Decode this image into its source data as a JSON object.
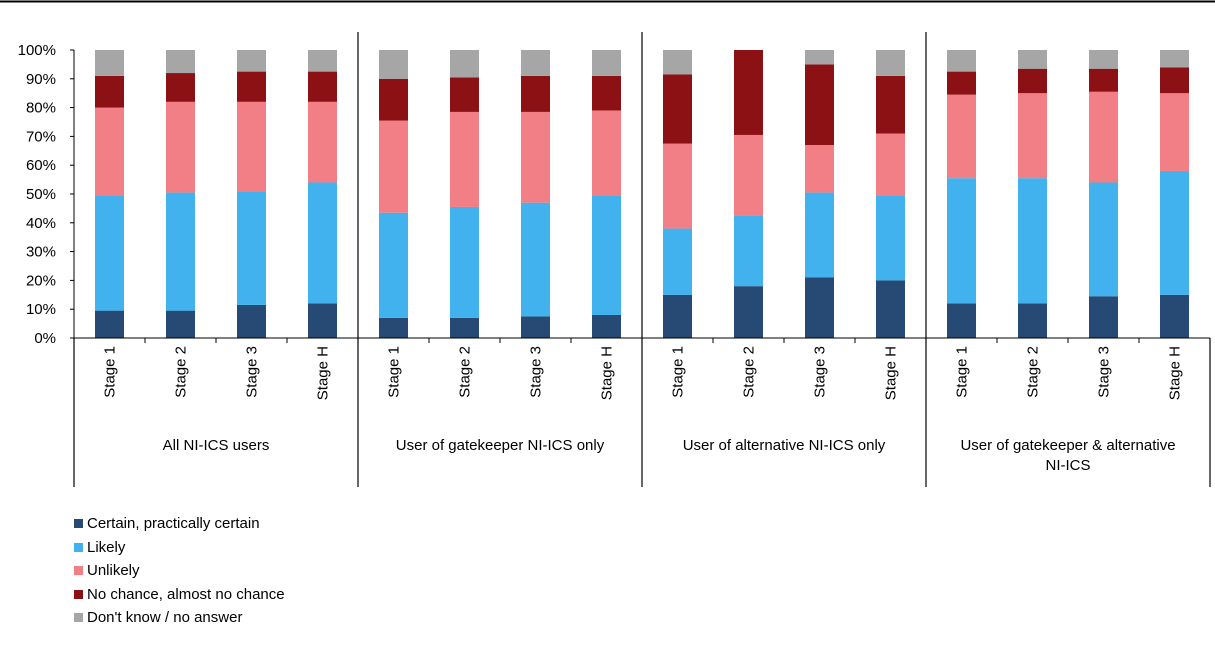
{
  "chart_data": {
    "type": "bar",
    "stacked": true,
    "yticks": [
      "0%",
      "10%",
      "20%",
      "30%",
      "40%",
      "50%",
      "60%",
      "70%",
      "80%",
      "90%",
      "100%"
    ],
    "ylim": [
      0,
      100
    ],
    "categories": [
      "Stage 1",
      "Stage 2",
      "Stage 3",
      "Stage H",
      "Stage 1",
      "Stage 2",
      "Stage 3",
      "Stage H",
      "Stage 1",
      "Stage 2",
      "Stage 3",
      "Stage H",
      "Stage 1",
      "Stage 2",
      "Stage 3",
      "Stage H"
    ],
    "groups": [
      {
        "label": "All NI-ICS users",
        "label_lines": [
          "All NI-ICS users"
        ]
      },
      {
        "label": "User of gatekeeper NI-ICS only",
        "label_lines": [
          "User of gatekeeper NI-ICS only"
        ]
      },
      {
        "label": "User of alternative NI-ICS only",
        "label_lines": [
          "User of alternative NI-ICS only"
        ]
      },
      {
        "label": "User of gatekeeper & alternative NI-ICS",
        "label_lines": [
          "User of gatekeeper & alternative",
          "NI-ICS"
        ]
      }
    ],
    "series": [
      {
        "name": "Certain, practically certain",
        "color": "#264a73",
        "values": [
          9.5,
          9.5,
          11.5,
          12,
          7,
          7,
          7.5,
          8,
          15,
          18,
          21,
          20,
          12,
          12,
          14.5,
          15
        ]
      },
      {
        "name": "Likely",
        "color": "#41b2ee",
        "values": [
          40,
          41,
          39.5,
          42,
          36.5,
          38.5,
          39.5,
          41.5,
          23,
          24.5,
          29.5,
          29.5,
          43.5,
          43.5,
          39.5,
          43
        ]
      },
      {
        "name": "Unlikely",
        "color": "#f27f85",
        "values": [
          30.5,
          31.5,
          31,
          28,
          32,
          33,
          31.5,
          29.5,
          29.5,
          28,
          16.5,
          21.5,
          29,
          29.5,
          31.5,
          27
        ]
      },
      {
        "name": "No chance, almost no chance",
        "color": "#8c1115",
        "values": [
          11,
          10,
          10.5,
          10.5,
          14.5,
          12,
          12.5,
          12,
          24,
          29.5,
          28,
          20,
          8,
          8.5,
          8,
          9
        ]
      },
      {
        "name": "Don't know / no answer",
        "color": "#a6a6a6",
        "values": [
          9,
          8,
          7.5,
          7.5,
          10,
          9.5,
          9,
          9,
          8.5,
          0,
          5,
          9,
          7.5,
          6.5,
          6.5,
          6
        ]
      }
    ],
    "legend_position": "bottom-left"
  }
}
